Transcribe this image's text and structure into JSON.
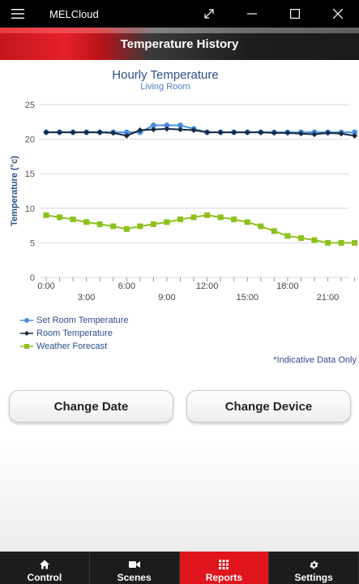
{
  "window": {
    "app_name": "MELCloud",
    "menu_icon": "hamburger-icon",
    "controls": [
      "expand-icon",
      "minimize-icon",
      "maximize-icon",
      "close-icon"
    ]
  },
  "header": {
    "title": "Temperature History"
  },
  "colors": {
    "set_room": "#4a8fdc",
    "room": "#162a44",
    "weather": "#8dc11e",
    "active_tab": "#e0141c"
  },
  "chart_data": {
    "type": "line",
    "title": "Hourly Temperature",
    "subtitle": "Living Room",
    "ylabel": "Temperature (°c)",
    "ylim": [
      0,
      25
    ],
    "yticks": [
      0,
      5,
      10,
      15,
      20,
      25
    ],
    "x": [
      0,
      1,
      2,
      3,
      4,
      5,
      6,
      7,
      8,
      9,
      10,
      11,
      12,
      13,
      14,
      15,
      16,
      17,
      18,
      19,
      20,
      21,
      22,
      23
    ],
    "xticks_top": [
      "0:00",
      "6:00",
      "12:00",
      "18:00"
    ],
    "xticks_bottom": [
      "3:00",
      "9:00",
      "15:00",
      "21:00"
    ],
    "series": [
      {
        "name": "Set Room Temperature",
        "values": [
          21,
          21,
          21,
          21,
          21,
          21,
          21,
          21,
          22,
          22,
          22,
          21.5,
          21,
          21,
          21,
          21,
          21,
          21,
          21,
          21,
          21,
          21,
          21,
          21
        ]
      },
      {
        "name": "Room Temperature",
        "values": [
          21,
          21,
          21,
          21,
          21,
          20.9,
          20.5,
          21.3,
          21.4,
          21.5,
          21.4,
          21.3,
          21,
          21,
          21,
          21,
          21,
          20.9,
          20.9,
          20.8,
          20.7,
          20.9,
          20.8,
          20.5
        ]
      },
      {
        "name": "Weather Forecast",
        "values": [
          9,
          8.7,
          8.4,
          8,
          7.7,
          7.4,
          7,
          7.4,
          7.7,
          8,
          8.4,
          8.7,
          9,
          8.7,
          8.4,
          8,
          7.4,
          6.7,
          6,
          5.7,
          5.4,
          5,
          5,
          5
        ]
      }
    ],
    "grid": "horizontal",
    "legend": "bottom-left"
  },
  "note": "*Indicative Data Only",
  "buttons": {
    "change_date": "Change Date",
    "change_device": "Change Device"
  },
  "nav": [
    {
      "label": "Control",
      "icon": "home-icon"
    },
    {
      "label": "Scenes",
      "icon": "camera-icon"
    },
    {
      "label": "Reports",
      "icon": "grid-icon",
      "active": true
    },
    {
      "label": "Settings",
      "icon": "gear-icon"
    }
  ]
}
